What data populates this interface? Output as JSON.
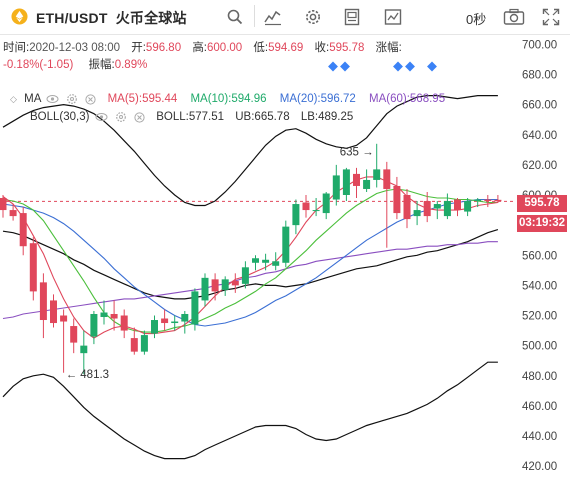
{
  "header": {
    "pair": "ETH/USDT",
    "exchange": "火币全球站",
    "countdown": "0秒",
    "icons": [
      "search-icon",
      "indicator-icon",
      "settings-icon",
      "layout-icon",
      "fullscreen-chart-icon",
      "camera-icon",
      "expand-icon"
    ]
  },
  "info": {
    "time_label": "时间:",
    "time_value": "2020-12-03 08:00",
    "open_label": "开:",
    "open_value": "596.80",
    "high_label": "高:",
    "high_value": "600.00",
    "low_label": "低:",
    "low_value": "594.69",
    "close_label": "收:",
    "close_value": "595.78",
    "change_label": "涨幅:",
    "change_value": "-0.18%(-1.05)",
    "amplitude_label": "振幅:",
    "amplitude_value": "0.89%"
  },
  "ma_line": {
    "name": "MA",
    "ma5": "MA(5):595.44",
    "ma10": "MA(10):594.96",
    "ma20": "MA(20):596.72",
    "ma60": "MA(60):568.95"
  },
  "boll_line": {
    "name": "BOLL(30,3)",
    "boll": "BOLL:577.51",
    "ub": "UB:665.78",
    "lb": "LB:489.25"
  },
  "price_axis": [
    "700.00",
    "680.00",
    "660.00",
    "640.00",
    "620.00",
    "600.00",
    "580.00",
    "560.00",
    "540.00",
    "520.00",
    "500.00",
    "480.00",
    "460.00",
    "440.00",
    "420.00"
  ],
  "current_price": "595.78",
  "countdown_tag": "03:19:32",
  "annotations": {
    "high_mark": "635",
    "low_mark": "481.3"
  },
  "colors": {
    "up": "#1faa6a",
    "down": "#e0475b",
    "ma5": "#e0475b",
    "ma10": "#4bbf3b",
    "ma20": "#3b6fd4",
    "ma60": "#8a4fc0",
    "boll": "#111111"
  },
  "chart_data": {
    "type": "candlestick",
    "ylim": [
      415,
      705
    ],
    "candles": [
      {
        "o": 598,
        "h": 600,
        "l": 585,
        "c": 590
      },
      {
        "o": 590,
        "h": 594,
        "l": 583,
        "c": 586
      },
      {
        "o": 588,
        "h": 592,
        "l": 560,
        "c": 566
      },
      {
        "o": 568,
        "h": 572,
        "l": 530,
        "c": 536
      },
      {
        "o": 542,
        "h": 548,
        "l": 505,
        "c": 517
      },
      {
        "o": 530,
        "h": 534,
        "l": 512,
        "c": 515
      },
      {
        "o": 520,
        "h": 524,
        "l": 482,
        "c": 516
      },
      {
        "o": 513,
        "h": 518,
        "l": 495,
        "c": 502
      },
      {
        "o": 495,
        "h": 510,
        "l": 481,
        "c": 500
      },
      {
        "o": 506,
        "h": 523,
        "l": 501,
        "c": 521
      },
      {
        "o": 519,
        "h": 530,
        "l": 514,
        "c": 522
      },
      {
        "o": 521,
        "h": 530,
        "l": 510,
        "c": 518
      },
      {
        "o": 520,
        "h": 524,
        "l": 505,
        "c": 510
      },
      {
        "o": 505,
        "h": 512,
        "l": 494,
        "c": 496
      },
      {
        "o": 496,
        "h": 510,
        "l": 494,
        "c": 507
      },
      {
        "o": 508,
        "h": 520,
        "l": 505,
        "c": 517
      },
      {
        "o": 518,
        "h": 524,
        "l": 510,
        "c": 515
      },
      {
        "o": 515,
        "h": 520,
        "l": 510,
        "c": 516
      },
      {
        "o": 516,
        "h": 523,
        "l": 508,
        "c": 521
      },
      {
        "o": 514,
        "h": 538,
        "l": 510,
        "c": 536
      },
      {
        "o": 530,
        "h": 548,
        "l": 526,
        "c": 545
      },
      {
        "o": 544,
        "h": 548,
        "l": 530,
        "c": 536
      },
      {
        "o": 537,
        "h": 546,
        "l": 533,
        "c": 544
      },
      {
        "o": 543,
        "h": 548,
        "l": 535,
        "c": 540
      },
      {
        "o": 541,
        "h": 556,
        "l": 538,
        "c": 552
      },
      {
        "o": 555,
        "h": 560,
        "l": 550,
        "c": 558
      },
      {
        "o": 555,
        "h": 561,
        "l": 550,
        "c": 557
      },
      {
        "o": 553,
        "h": 562,
        "l": 550,
        "c": 556
      },
      {
        "o": 555,
        "h": 583,
        "l": 552,
        "c": 579
      },
      {
        "o": 580,
        "h": 597,
        "l": 574,
        "c": 594
      },
      {
        "o": 595,
        "h": 600,
        "l": 585,
        "c": 590
      },
      {
        "o": 590,
        "h": 598,
        "l": 586,
        "c": 590
      },
      {
        "o": 588,
        "h": 602,
        "l": 584,
        "c": 601
      },
      {
        "o": 597,
        "h": 620,
        "l": 593,
        "c": 613
      },
      {
        "o": 600,
        "h": 618,
        "l": 596,
        "c": 617
      },
      {
        "o": 614,
        "h": 618,
        "l": 598,
        "c": 606
      },
      {
        "o": 604,
        "h": 617,
        "l": 602,
        "c": 610
      },
      {
        "o": 610,
        "h": 634,
        "l": 605,
        "c": 617
      },
      {
        "o": 617,
        "h": 622,
        "l": 565,
        "c": 604
      },
      {
        "o": 606,
        "h": 612,
        "l": 584,
        "c": 588
      },
      {
        "o": 600,
        "h": 604,
        "l": 578,
        "c": 584
      },
      {
        "o": 586,
        "h": 596,
        "l": 580,
        "c": 590
      },
      {
        "o": 596,
        "h": 602,
        "l": 582,
        "c": 586
      },
      {
        "o": 591,
        "h": 596,
        "l": 584,
        "c": 594
      },
      {
        "o": 586,
        "h": 601,
        "l": 584,
        "c": 596
      },
      {
        "o": 597,
        "h": 598,
        "l": 586,
        "c": 590
      },
      {
        "o": 589,
        "h": 598,
        "l": 586,
        "c": 596
      },
      {
        "o": 596,
        "h": 598,
        "l": 592,
        "c": 597
      },
      {
        "o": 597,
        "h": 600,
        "l": 592,
        "c": 596
      },
      {
        "o": 596.8,
        "h": 600,
        "l": 594.69,
        "c": 595.78
      }
    ],
    "ma5": [
      599,
      594,
      585,
      573,
      561,
      545,
      531,
      519,
      510,
      505,
      509,
      512,
      513,
      511,
      508,
      508,
      509,
      510,
      514,
      519,
      526,
      533,
      539,
      544,
      546,
      549,
      552,
      556,
      563,
      572,
      582,
      590,
      595,
      602,
      606,
      610,
      612,
      612,
      609,
      606,
      599,
      594,
      591,
      590,
      590,
      590,
      591,
      593,
      594,
      595
    ],
    "ma10": [
      597,
      596,
      594,
      590,
      583,
      573,
      563,
      553,
      543,
      532,
      522,
      516,
      512,
      510,
      509,
      509,
      510,
      512,
      513,
      515,
      518,
      521,
      525,
      528,
      532,
      536,
      541,
      545,
      551,
      557,
      563,
      570,
      576,
      582,
      588,
      593,
      597,
      601,
      603,
      604,
      603,
      601,
      599,
      598,
      598,
      597,
      597,
      596,
      595,
      595
    ],
    "ma20": [
      594,
      593,
      592,
      590,
      588,
      585,
      581,
      576,
      570,
      564,
      558,
      551,
      545,
      539,
      534,
      529,
      524,
      520,
      517,
      514,
      513,
      514,
      515,
      517,
      519,
      522,
      526,
      530,
      533,
      537,
      541,
      545,
      550,
      555,
      560,
      565,
      570,
      574,
      578,
      582,
      585,
      588,
      590,
      592,
      594,
      595,
      596,
      597,
      597,
      597
    ],
    "ma60": [
      518,
      519,
      521,
      522,
      523,
      524,
      525,
      526,
      527,
      528,
      529,
      530,
      531,
      531,
      532,
      533,
      534,
      535,
      536,
      537,
      538,
      540,
      541,
      543,
      545,
      546,
      548,
      549,
      551,
      553,
      554,
      556,
      557,
      558,
      559,
      560,
      561,
      562,
      563,
      564,
      564,
      565,
      566,
      566,
      567,
      567,
      568,
      568,
      569,
      569
    ],
    "boll_mid": [
      576,
      575,
      573,
      570,
      567,
      564,
      561,
      557,
      554,
      550,
      547,
      544,
      541,
      538,
      535,
      533,
      532,
      531,
      531,
      532,
      533,
      535,
      537,
      538,
      540,
      541,
      540,
      540,
      539,
      540,
      541,
      543,
      545,
      547,
      549,
      551,
      552,
      553,
      555,
      557,
      559,
      560,
      562,
      563,
      565,
      567,
      569,
      572,
      575,
      577
    ],
    "boll_ub": [
      645,
      649,
      653,
      656,
      658,
      659,
      660,
      659,
      657,
      654,
      649,
      643,
      636,
      629,
      621,
      613,
      606,
      600,
      595,
      593,
      593,
      596,
      602,
      609,
      617,
      625,
      633,
      639,
      643,
      644,
      641,
      637,
      634,
      632,
      631,
      633,
      638,
      646,
      654,
      659,
      662,
      665,
      666,
      666,
      665,
      664,
      665,
      666,
      666,
      666
    ],
    "boll_lb": [
      466,
      473,
      478,
      480,
      481,
      479,
      473,
      466,
      459,
      453,
      448,
      443,
      438,
      434,
      430,
      427,
      425,
      425,
      425,
      427,
      431,
      434,
      437,
      440,
      443,
      446,
      447,
      447,
      447,
      445,
      441,
      438,
      437,
      438,
      441,
      444,
      447,
      449,
      451,
      453,
      455,
      458,
      461,
      465,
      470,
      474,
      479,
      484,
      489,
      489
    ]
  }
}
